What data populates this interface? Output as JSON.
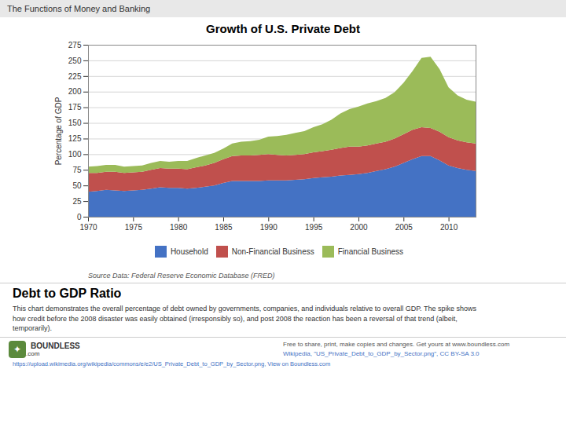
{
  "chart_data": {
    "type": "area",
    "stacked": true,
    "title": "Growth of U.S. Private Debt",
    "ylabel": "Percentage of GDP",
    "x": [
      1970,
      1971,
      1972,
      1973,
      1974,
      1975,
      1976,
      1977,
      1978,
      1979,
      1980,
      1981,
      1982,
      1983,
      1984,
      1985,
      1986,
      1987,
      1988,
      1989,
      1990,
      1991,
      1992,
      1993,
      1994,
      1995,
      1996,
      1997,
      1998,
      1999,
      2000,
      2001,
      2002,
      2003,
      2004,
      2005,
      2006,
      2007,
      2008,
      2009,
      2010,
      2011,
      2012,
      2013
    ],
    "series": [
      {
        "name": "Household",
        "color": "#4472C4",
        "values": [
          40,
          41,
          43,
          42,
          41,
          42,
          43,
          45,
          47,
          46,
          46,
          45,
          46,
          48,
          50,
          54,
          57,
          57,
          57,
          57,
          58,
          58,
          58,
          59,
          60,
          62,
          63,
          64,
          66,
          67,
          68,
          70,
          73,
          76,
          80,
          86,
          92,
          97,
          97,
          90,
          82,
          78,
          75,
          73
        ]
      },
      {
        "name": "Non-Financial Business",
        "color": "#C0504D",
        "values": [
          30,
          29,
          29,
          30,
          29,
          29,
          29,
          30,
          31,
          31,
          31,
          31,
          33,
          34,
          36,
          38,
          40,
          41,
          41,
          42,
          42,
          41,
          40,
          40,
          40,
          41,
          42,
          43,
          44,
          45,
          44,
          44,
          44,
          44,
          45,
          46,
          47,
          46,
          45,
          46,
          45,
          44,
          44,
          44
        ]
      },
      {
        "name": "Financial Business",
        "color": "#9BBB59",
        "values": [
          10,
          11,
          11,
          11,
          10,
          10,
          10,
          11,
          11,
          11,
          12,
          13,
          15,
          16,
          16,
          17,
          20,
          22,
          23,
          24,
          28,
          30,
          33,
          35,
          37,
          40,
          43,
          48,
          55,
          60,
          64,
          67,
          68,
          70,
          74,
          82,
          94,
          111,
          114,
          100,
          80,
          72,
          68,
          67
        ]
      }
    ],
    "xlim": [
      1970,
      2013
    ],
    "xticks": [
      1970,
      1975,
      1980,
      1985,
      1990,
      1995,
      2000,
      2005,
      2010
    ],
    "ylim": [
      0,
      275
    ],
    "yticks": [
      0,
      25,
      50,
      75,
      100,
      125,
      150,
      175,
      200,
      225,
      250,
      275
    ],
    "grid": true,
    "legend": "bottom",
    "annotations": [
      "The Functions of Money and Banking",
      "Source Data:  Federal Reserve Economic Database (FRED)",
      "Debt to GDP Ratio",
      "This chart demonstrates the overall percentage of debt owned by governments, companies, and individuals relative to overall GDP. The spike shows\nhow credit before the 2008 disaster was easily obtained (irresponsibly so), and post 2008 the reaction has been a reversal of that trend (albeit,\ntemporarily).",
      "✦",
      "BOUNDLESS",
      ".com",
      "Free to share, print, make copies and changes. Get yours at www.boundless.com",
      "Wikipedia, \"US_Private_Debt_to_GDP_by_Sector.png\",  CC BY-SA 3.0",
      "https://upload.wikimedia.org/wikipedia/commons/e/e2/US_Private_Debt_to_GDP_by_Sector.png, View on Boundless.com"
    ]
  }
}
